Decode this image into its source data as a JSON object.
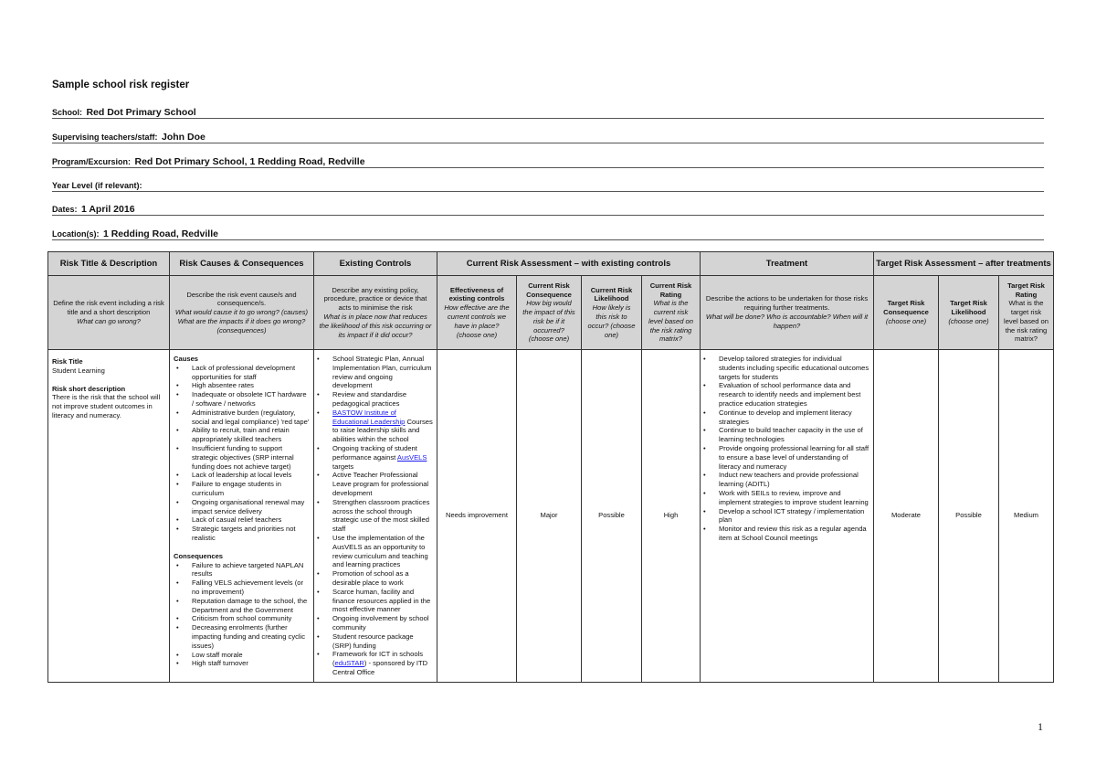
{
  "document": {
    "title": "Sample school risk register",
    "fields": [
      {
        "label": "School:",
        "value": "Red Dot Primary School"
      },
      {
        "label": "Supervising teachers/staff:",
        "value": "John Doe"
      },
      {
        "label": "Program/Excursion:",
        "value": "Red Dot Primary School, 1 Redding Road, Redville"
      },
      {
        "label": "Year Level (if relevant):",
        "value": ""
      },
      {
        "label": "Dates:",
        "value": "1 April 2016"
      },
      {
        "label": "Location(s):",
        "value": "1 Redding Road, Redville"
      }
    ],
    "page_number": "1"
  },
  "table": {
    "headers": {
      "risk_title": "Risk Title & Description",
      "causes": "Risk Causes & Consequences",
      "controls": "Existing Controls",
      "current": "Current Risk Assessment – with existing controls",
      "treatment": "Treatment",
      "target": "Target Risk Assessment – after treatments"
    },
    "descriptions": {
      "risk_title": {
        "text": "Define the risk event including a risk title and a short description",
        "italic": "What can go wrong?"
      },
      "causes": {
        "text": "Describe the risk event cause/s and consequence/s.",
        "italic": "What would cause it to go wrong? (causes) What are the impacts if it does go wrong? (consequences)"
      },
      "controls": {
        "text": "Describe any existing policy, procedure, practice or device that acts to minimise the risk",
        "italic": "What is in place now that reduces the likelihood of this risk occurring or its impact if it did occur?"
      },
      "effectiveness": {
        "bold": "Effectiveness of existing controls",
        "italic": "How effective are the current controls we have in place? (choose one)"
      },
      "consequence": {
        "bold": "Current Risk Consequence",
        "italic": "How big would the impact of this risk be if it occurred? (choose one)"
      },
      "likelihood": {
        "bold": "Current Risk Likelihood",
        "italic": "How likely is this risk to occur? (choose one)"
      },
      "rating": {
        "bold": "Current Risk Rating",
        "italic": "What is the current risk level based on the risk rating matrix?"
      },
      "treatment": {
        "text": "Describe the actions to be undertaken for those risks requiring further treatments.",
        "italic": "What will be done? Who is accountable? When will it happen?"
      },
      "target_consequence": {
        "bold": "Target Risk Consequence",
        "italic": "(choose one)"
      },
      "target_likelihood": {
        "bold": "Target Risk Likelihood",
        "italic": "(choose one)"
      },
      "target_rating": {
        "bold": "Target Risk Rating",
        "text": "What is the target risk level based on the risk rating matrix?"
      }
    },
    "row": {
      "risk_title_label": "Risk Title",
      "risk_title": "Student Learning",
      "short_desc_label": "Risk short description",
      "short_desc": "There is the risk that the school will not improve student outcomes in literacy and numeracy.",
      "causes_label": "Causes",
      "causes": [
        "Lack of professional development opportunities for staff",
        "High absentee rates",
        "Inadequate or obsolete ICT hardware / software / networks",
        "Administrative burden (regulatory, social and legal compliance) 'red tape'",
        "Ability to recruit, train and retain appropriately skilled teachers",
        "Insufficient funding to support strategic objectives (SRP internal funding does not achieve target)",
        "Lack of leadership at local levels",
        "Failure to engage students in curriculum",
        "Ongoing organisational renewal may impact service delivery",
        "Lack of casual relief teachers",
        "Strategic targets and priorities not realistic"
      ],
      "consequences_label": "Consequences",
      "consequences": [
        "Failure to achieve targeted NAPLAN results",
        "Falling VELS achievement levels (or no improvement)",
        "Reputation damage to the school, the Department and the Government",
        "Criticism from school community",
        "Decreasing enrolments (further impacting funding and creating cyclic issues)",
        "Low staff morale",
        "High staff turnover"
      ],
      "controls": [
        {
          "parts": [
            {
              "t": "School Strategic Plan, Annual Implementation Plan, curriculum review and ongoing development"
            }
          ]
        },
        {
          "parts": [
            {
              "t": "Review and standardise pedagogical practices"
            }
          ]
        },
        {
          "parts": [
            {
              "t": "BASTOW Institute of Educational Leadership",
              "link": true
            },
            {
              "t": " Courses to raise leadership skills and abilities within the school"
            }
          ]
        },
        {
          "parts": [
            {
              "t": "Ongoing tracking of student performance against "
            },
            {
              "t": "AusVELS",
              "link": true
            },
            {
              "t": " targets"
            }
          ]
        },
        {
          "parts": [
            {
              "t": "Active Teacher Professional Leave program for professional development"
            }
          ]
        },
        {
          "parts": [
            {
              "t": "Strengthen classroom practices across the school through strategic use of the most skilled staff"
            }
          ]
        },
        {
          "parts": [
            {
              "t": "Use the implementation of the AusVELS as an opportunity to review curriculum and teaching and learning practices"
            }
          ]
        },
        {
          "parts": [
            {
              "t": "Promotion of school as a desirable place to work"
            }
          ]
        },
        {
          "parts": [
            {
              "t": "Scarce human, facility and finance resources applied in the most effective manner"
            }
          ]
        },
        {
          "parts": [
            {
              "t": "Ongoing involvement by school community"
            }
          ]
        },
        {
          "parts": [
            {
              "t": "Student resource package (SRP) funding"
            }
          ]
        },
        {
          "parts": [
            {
              "t": "Framework for ICT in schools ("
            },
            {
              "t": "eduSTAR",
              "link": true
            },
            {
              "t": ") - sponsored by ITD Central Office"
            }
          ]
        }
      ],
      "effectiveness": "Needs improvement",
      "consequence": "Major",
      "likelihood": "Possible",
      "rating": "High",
      "treatments": [
        "Develop tailored strategies for individual students including specific educational outcomes targets for students",
        "Evaluation of school performance data and research to identify needs and implement best practice education strategies",
        "Continue to develop and implement literacy strategies",
        "Continue to build teacher capacity in the use of learning technologies",
        "Provide ongoing professional learning for all staff to ensure a base level of understanding of literacy and numeracy",
        "Induct new teachers and provide professional learning (ADITL)",
        "Work with SEILs to review, improve and implement strategies to improve student learning",
        "Develop a school ICT strategy / implementation plan",
        "Monitor and review this risk as a regular agenda item at School Council meetings"
      ],
      "target_consequence": "Moderate",
      "target_likelihood": "Possible",
      "target_rating": "Medium"
    }
  }
}
